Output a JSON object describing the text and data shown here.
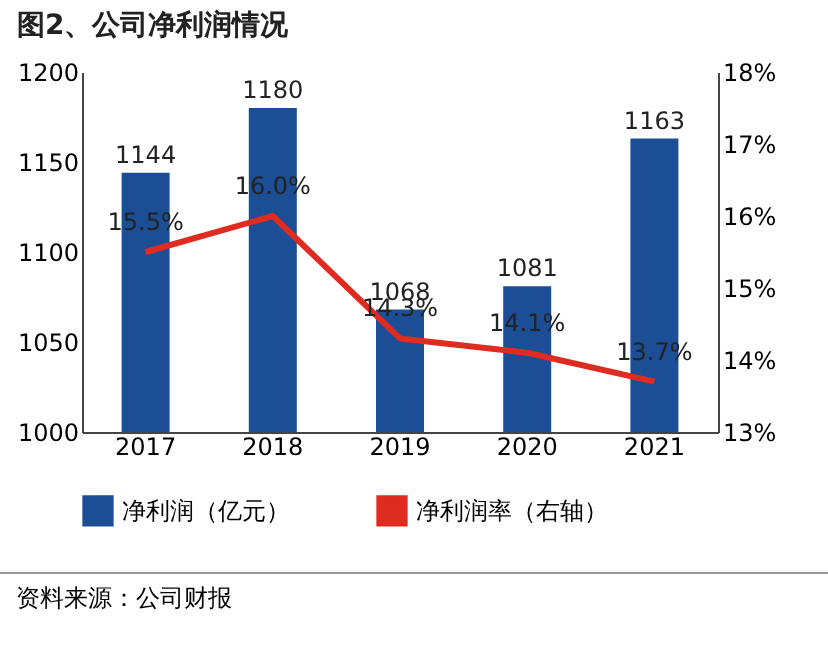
{
  "chart_data": {
    "type": "bar",
    "title": "图2、公司净利润情况",
    "categories": [
      "2017",
      "2018",
      "2019",
      "2020",
      "2021"
    ],
    "series": [
      {
        "name": "净利润（亿元）",
        "color": "#1c4e96",
        "values": [
          1144,
          1180,
          1068,
          1081,
          1163
        ],
        "value_labels": [
          "1144",
          "1180",
          "1068",
          "1081",
          "1163"
        ]
      },
      {
        "name": "净利润率（右轴）",
        "type": "line",
        "axis": "y2",
        "color": "#e02b20",
        "values": [
          15.5,
          16.0,
          14.3,
          14.1,
          13.7
        ],
        "value_labels": [
          "15.5%",
          "16.0%",
          "14.3%",
          "14.1%",
          "13.7%"
        ]
      }
    ],
    "ylim": [
      1000,
      1200
    ],
    "yticks": [
      1000,
      1050,
      1100,
      1150,
      1200
    ],
    "y2lim": [
      13,
      18
    ],
    "y2ticks": [
      {
        "value": 13,
        "label": "13%"
      },
      {
        "value": 14,
        "label": "14%"
      },
      {
        "value": 15,
        "label": "15%"
      },
      {
        "value": 16,
        "label": "16%"
      },
      {
        "value": 17,
        "label": "17%"
      },
      {
        "value": 18,
        "label": "18%"
      }
    ],
    "legend": "bottom",
    "annotations": [
      "资料来源：公司财报"
    ]
  }
}
